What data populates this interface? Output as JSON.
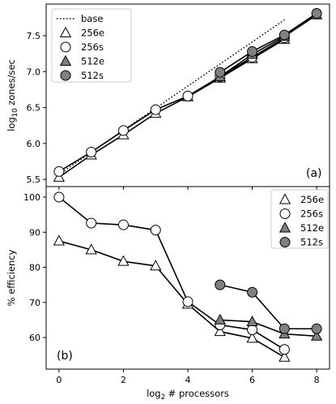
{
  "chart_data": [
    {
      "type": "line",
      "panel_label": "(a)",
      "xlabel": "",
      "ylabel": "log",
      "ylabel_sub": "10",
      "ylabel_rest": " zones/sec",
      "xlim": [
        -0.4,
        8.4
      ],
      "ylim": [
        5.4,
        7.94
      ],
      "x_ticks": [
        0,
        2,
        4,
        6,
        8
      ],
      "y_ticks": [
        "5.5",
        "6.0",
        "6.5",
        "7.0",
        "7.5"
      ],
      "legend_position": "upper-left",
      "baseline": {
        "name": "base",
        "style": "dotted",
        "x": [
          0,
          7
        ],
        "y": [
          5.57,
          7.72
        ]
      },
      "series": [
        {
          "name": "256e",
          "marker": "triangle",
          "fill": "#ffffff",
          "x": [
            0,
            1,
            2,
            3,
            4,
            5,
            6,
            7
          ],
          "y": [
            5.53,
            5.84,
            6.12,
            6.42,
            6.65,
            6.91,
            7.18,
            7.45
          ]
        },
        {
          "name": "256s",
          "marker": "circle",
          "fill": "#ffffff",
          "x": [
            0,
            1,
            2,
            3,
            4,
            5,
            6,
            7
          ],
          "y": [
            5.61,
            5.88,
            6.18,
            6.47,
            6.66,
            6.93,
            7.2,
            7.47
          ]
        },
        {
          "name": "512e",
          "marker": "triangle",
          "fill": "#808080",
          "x": [
            5,
            6,
            7,
            8
          ],
          "y": [
            6.93,
            7.24,
            7.49,
            7.79
          ]
        },
        {
          "name": "512s",
          "marker": "circle",
          "fill": "#808080",
          "x": [
            5,
            6,
            7,
            8
          ],
          "y": [
            6.99,
            7.28,
            7.51,
            7.81
          ]
        }
      ]
    },
    {
      "type": "line",
      "panel_label": "(b)",
      "xlabel": "log",
      "xlabel_sub": "2",
      "xlabel_rest": " # processors",
      "ylabel": "% efficiency",
      "xlim": [
        -0.4,
        8.4
      ],
      "ylim": [
        51,
        103
      ],
      "x_ticks": [
        "0",
        "2",
        "4",
        "6",
        "8"
      ],
      "y_ticks": [
        "60",
        "70",
        "80",
        "90",
        "100"
      ],
      "legend_position": "upper-right",
      "series": [
        {
          "name": "256e",
          "marker": "triangle",
          "fill": "#ffffff",
          "x": [
            0,
            1,
            2,
            3,
            4,
            5,
            6,
            7
          ],
          "y": [
            87.5,
            85,
            81.7,
            80.4,
            69.5,
            61.7,
            59.8,
            54.4
          ]
        },
        {
          "name": "256s",
          "marker": "circle",
          "fill": "#ffffff",
          "x": [
            0,
            1,
            2,
            3,
            4,
            5,
            6,
            7
          ],
          "y": [
            100,
            92.6,
            92.1,
            90.6,
            70.2,
            63.6,
            62.2,
            56.6
          ]
        },
        {
          "name": "512e",
          "marker": "triangle",
          "fill": "#808080",
          "x": [
            5,
            6,
            7,
            8
          ],
          "y": [
            65,
            64.5,
            61,
            60.4
          ]
        },
        {
          "name": "512s",
          "marker": "circle",
          "fill": "#808080",
          "x": [
            5,
            6,
            7,
            8
          ],
          "y": [
            75,
            72.9,
            62.5,
            62.5
          ]
        }
      ]
    }
  ]
}
